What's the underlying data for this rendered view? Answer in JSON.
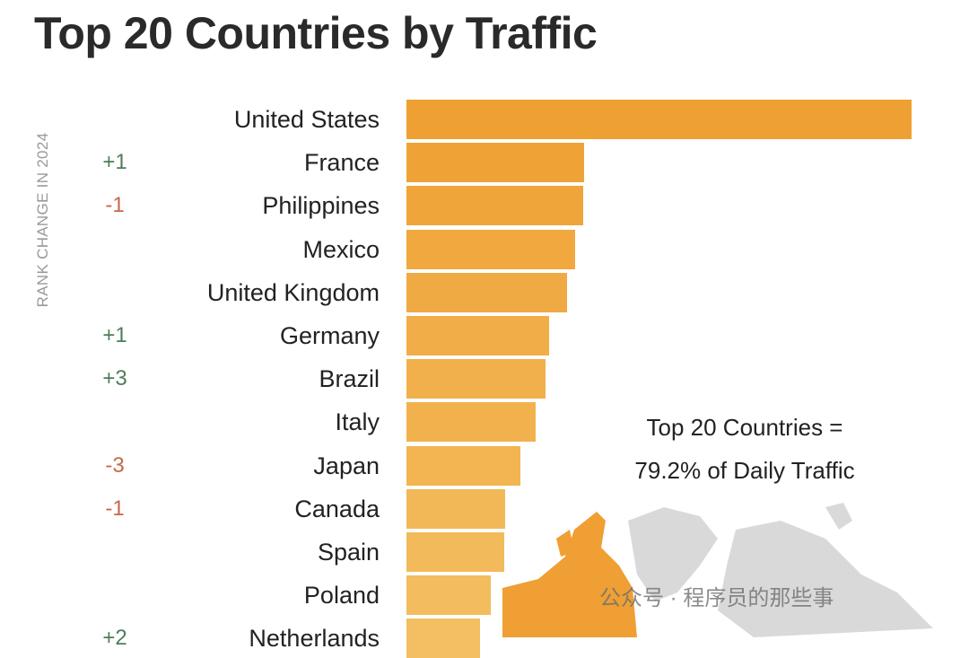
{
  "chart_data": {
    "type": "bar",
    "orientation": "horizontal",
    "title": "Top 20 Countries by Traffic",
    "ylabel": "RANK CHANGE IN 2024",
    "xlabel": "",
    "value_unit": "relative traffic (United States = 100, estimated from bar lengths)",
    "categories": [
      "United States",
      "France",
      "Philippines",
      "Mexico",
      "United Kingdom",
      "Germany",
      "Brazil",
      "Italy",
      "Japan",
      "Canada",
      "Spain",
      "Poland",
      "Netherlands"
    ],
    "values": [
      100,
      35.2,
      35.0,
      33.4,
      31.8,
      28.2,
      27.5,
      25.6,
      22.6,
      19.5,
      19.4,
      16.7,
      14.6
    ],
    "rank_change": [
      "",
      "+1",
      "-1",
      "",
      "",
      "+1",
      "+3",
      "",
      "-3",
      "-1",
      "",
      "",
      "+2"
    ],
    "annotation": [
      "Top 20 Countries =",
      "79.2% of Daily Traffic"
    ],
    "grid": false,
    "colors": {
      "bar_dark": "#EFA033",
      "bar_light": "#F3BF62",
      "up": "#4E7D5B",
      "down": "#C4694A",
      "map_orange": "#EF9F33",
      "map_gray": "#D9D9D9"
    }
  },
  "watermark": "公众号 · 程序员的那些事"
}
